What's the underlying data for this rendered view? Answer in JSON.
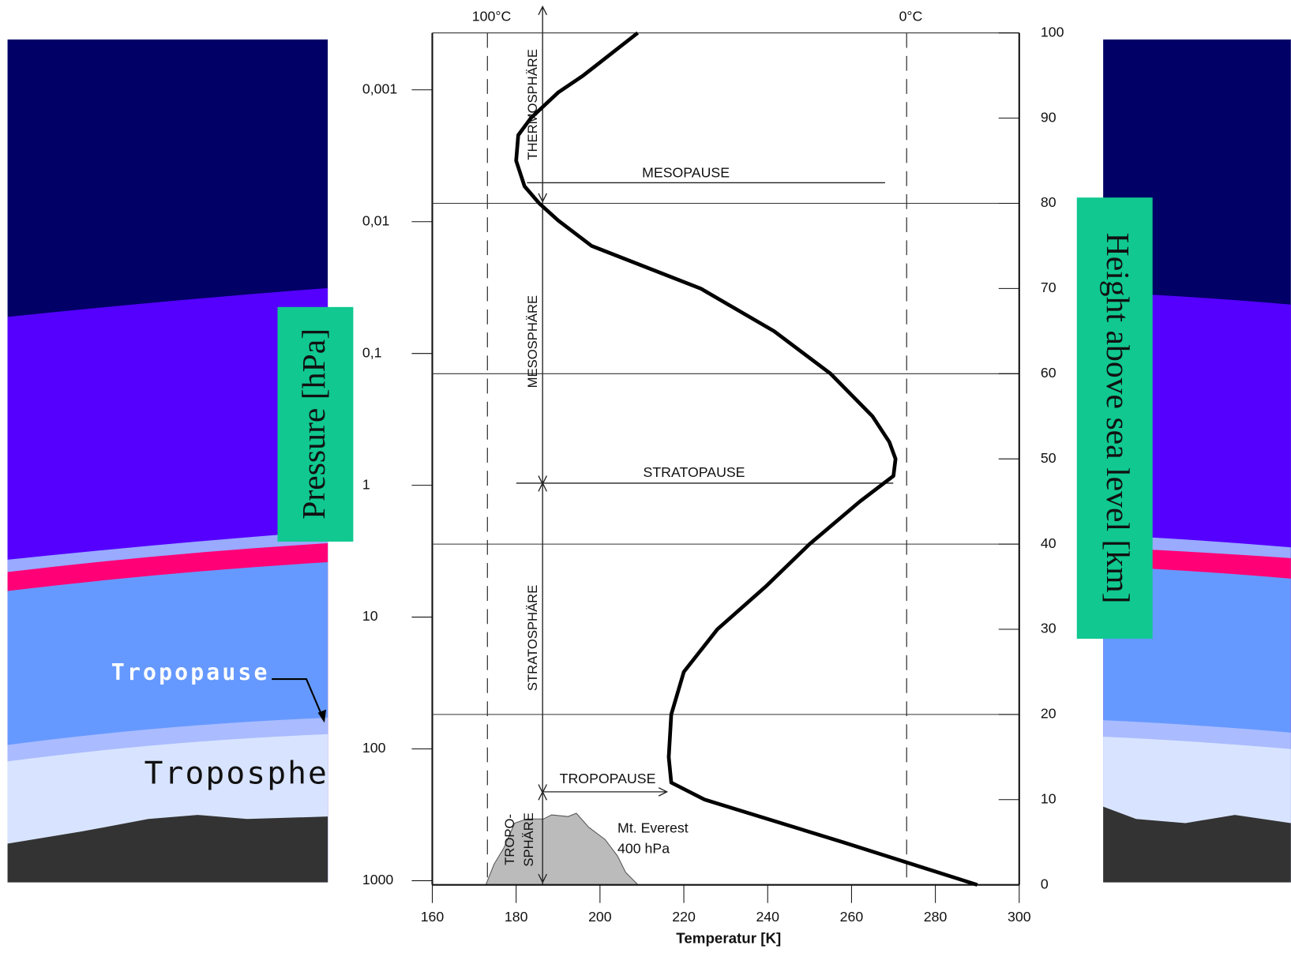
{
  "chart_data": {
    "type": "line",
    "x_label": "Temperatur [K]",
    "y_label": "Height above sea level [km]",
    "y2_label": "Pressure [hPa]",
    "series": [
      {
        "color": "#000000",
        "x": [
          290,
          258,
          225,
          217,
          216.4,
          217,
          220,
          228,
          239.5,
          250,
          262,
          270,
          270.5,
          269,
          265,
          255,
          241.5,
          224,
          198,
          190,
          185.5,
          182,
          180,
          180.5,
          183.5,
          190,
          196,
          209
        ],
        "values": [
          0,
          5,
          10,
          12,
          15,
          20,
          25,
          30,
          35,
          40,
          45,
          48,
          50,
          52,
          55,
          60,
          65,
          70,
          75,
          78,
          80,
          82,
          85,
          88,
          90,
          93,
          95,
          100
        ]
      }
    ],
    "xlim": [
      160,
      300
    ],
    "xticks": [
      160,
      180,
      200,
      220,
      240,
      260,
      280,
      300
    ],
    "ylim": [
      0,
      100
    ],
    "yticks": [
      0,
      10,
      20,
      30,
      40,
      50,
      60,
      70,
      80,
      90,
      100
    ],
    "y2lim": [
      1075,
      0.00037
    ],
    "y2scale": "log",
    "y2ticks": [
      {
        "value": 0.001,
        "label": "0,001"
      },
      {
        "value": 0.01,
        "label": "0,01"
      },
      {
        "value": 0.1,
        "label": "0,1"
      },
      1,
      10,
      100,
      1000
    ],
    "grid_y": [
      20,
      40,
      60,
      80
    ],
    "reference_lines": [
      {
        "value": 173.15,
        "label": "100°C"
      },
      {
        "value": 273.15,
        "label": "0°C"
      }
    ],
    "annotations": [
      "THERMOSPHÄRE",
      "MESOSPHÄRE",
      "STRATOSPHÄRE",
      "TROPO-",
      "SPHÄRE",
      "MESOPAUSE",
      "STRATOPAUSE",
      "TROPOPAUSE",
      "Mt. Everest",
      "400 hPa"
    ],
    "background_labels": [
      "Tropopause",
      "Troposphe"
    ]
  }
}
